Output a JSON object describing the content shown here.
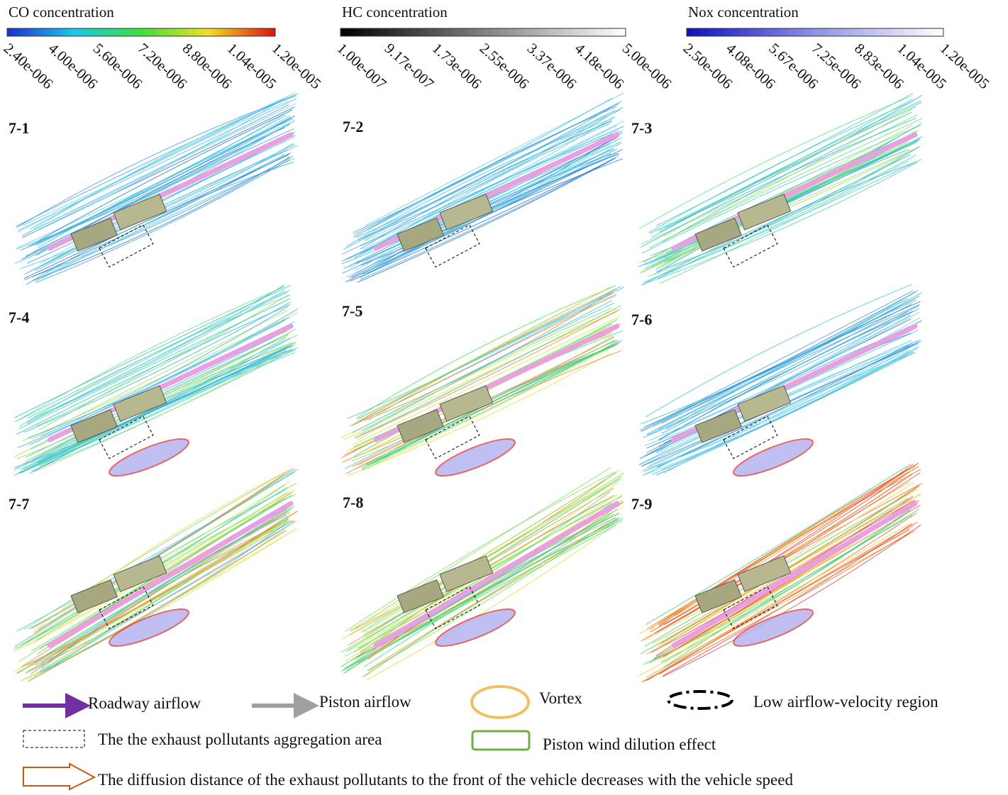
{
  "colorbars": [
    {
      "title": "CO concentration",
      "ticks": [
        "2.40e-006",
        "4.00e-006",
        "5.60e-006",
        "7.20e-006",
        "8.80e-006",
        "1.04e-005",
        "1.20e-005"
      ]
    },
    {
      "title": "HC concentration",
      "ticks": [
        "1.00e-007",
        "9.17e-007",
        "1.73e-006",
        "2.55e-006",
        "3.37e-006",
        "4.18e-006",
        "5.00e-006"
      ]
    },
    {
      "title": "Nox concentration",
      "ticks": [
        "2.50e-006",
        "4.08e-006",
        "5.67e-006",
        "7.25e-006",
        "8.83e-006",
        "1.04e-005",
        "1.20e-005"
      ]
    }
  ],
  "panels": [
    {
      "label": "7-1"
    },
    {
      "label": "7-2"
    },
    {
      "label": "7-3"
    },
    {
      "label": "7-4"
    },
    {
      "label": "7-5"
    },
    {
      "label": "7-6"
    },
    {
      "label": "7-7"
    },
    {
      "label": "7-8"
    },
    {
      "label": "7-9"
    }
  ],
  "legend": {
    "items": [
      {
        "label": "Roadway airflow"
      },
      {
        "label": "Piston airflow"
      },
      {
        "label": "Vortex"
      },
      {
        "label": "Low airflow-velocity region"
      },
      {
        "label": "The the exhaust pollutants aggregation area"
      },
      {
        "label": "Piston wind dilution effect"
      },
      {
        "label": "The diffusion distance of the exhaust pollutants to the front of the vehicle decreases with the vehicle speed"
      }
    ]
  }
}
